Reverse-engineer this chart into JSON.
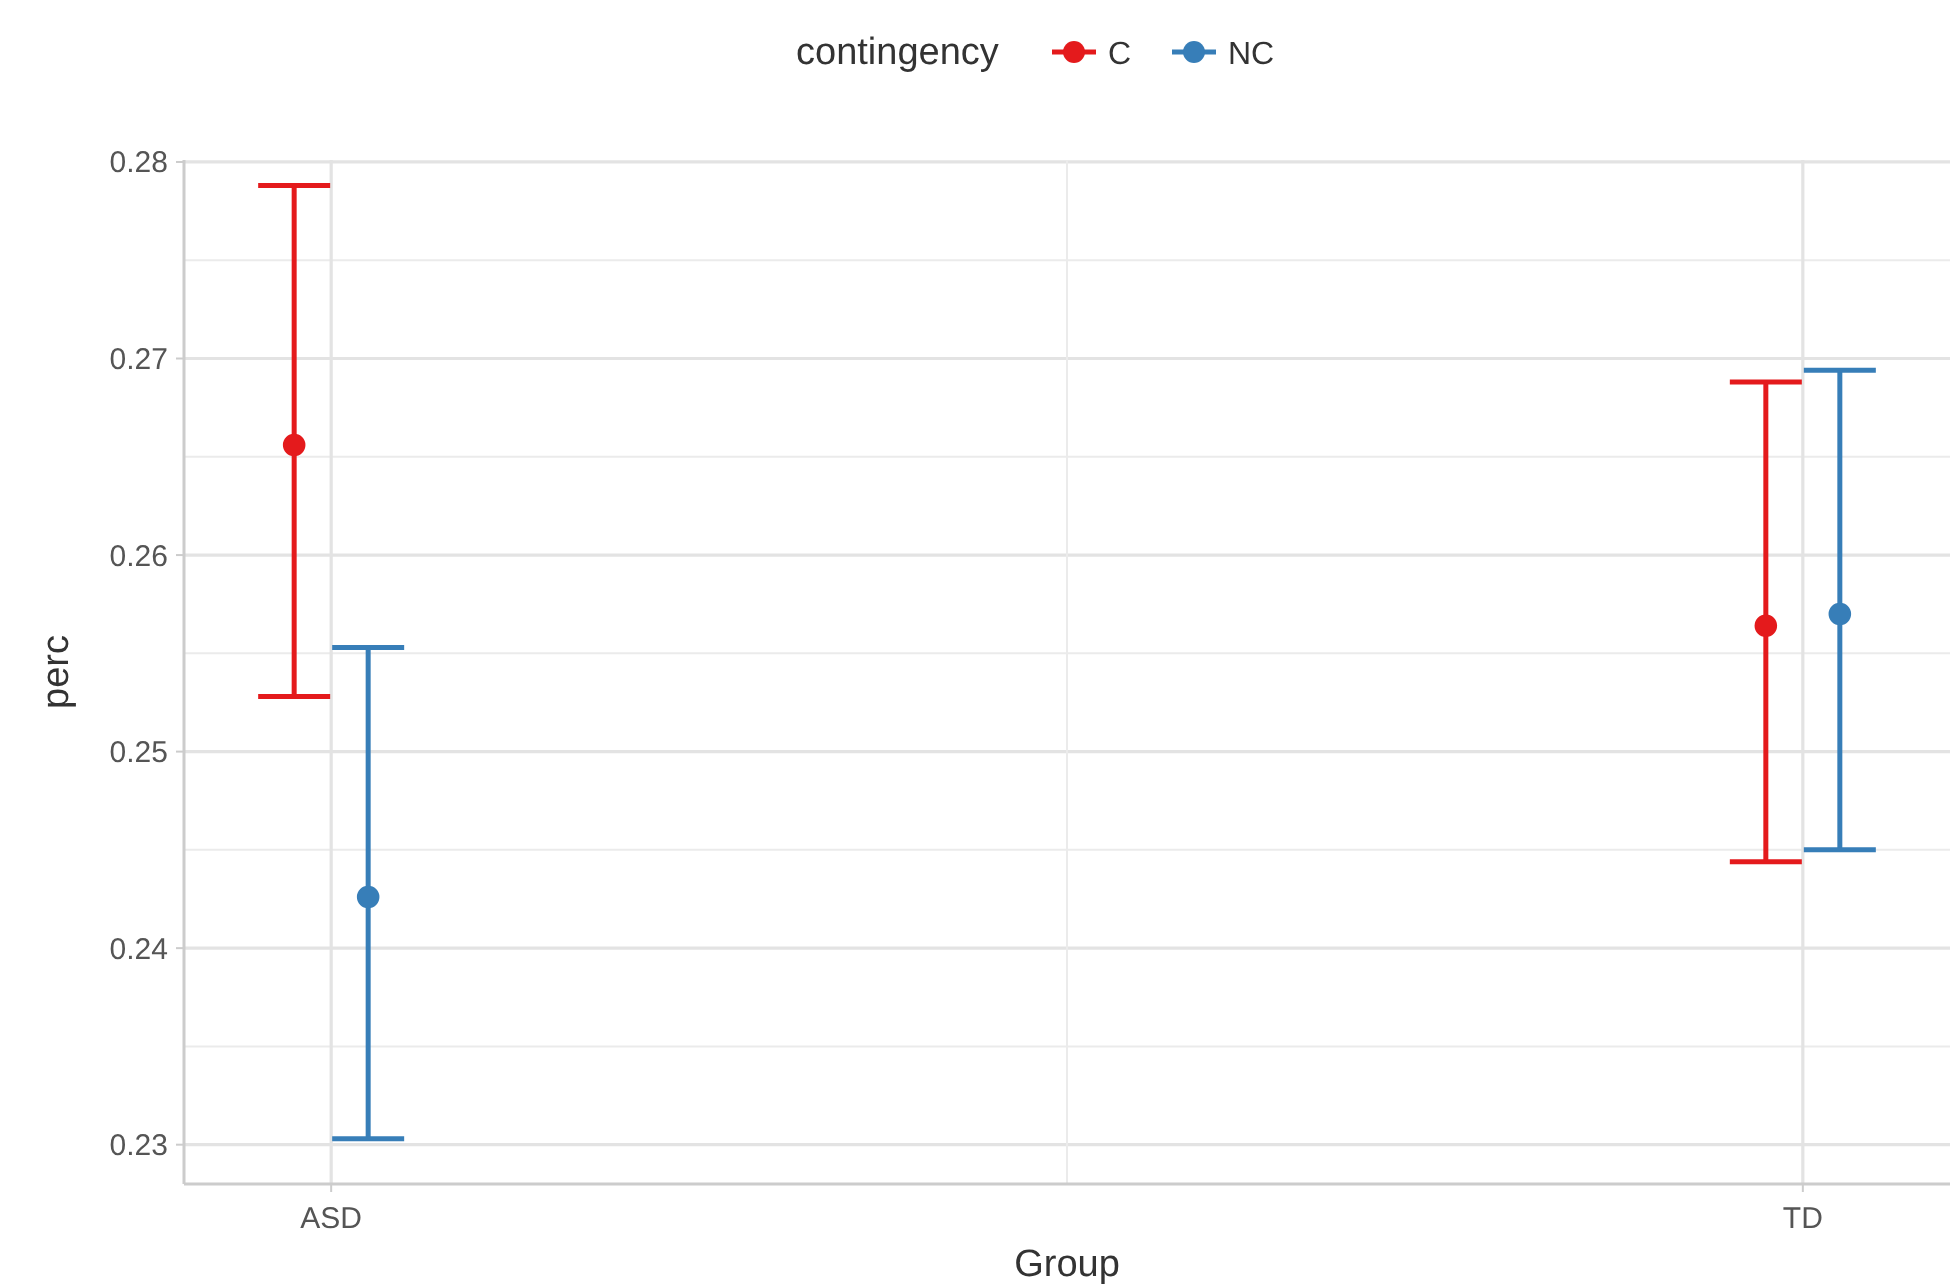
{
  "chart_data": {
    "type": "scatter",
    "xlabel": "Group",
    "ylabel": "perc",
    "legend_title": "contingency",
    "categories": [
      "ASD",
      "TD"
    ],
    "series": [
      {
        "name": "C",
        "color": "#e41a1c",
        "values": [
          0.2656,
          0.2564
        ],
        "errors": [
          [
            0.2528,
            0.2788
          ],
          [
            0.2444,
            0.2688
          ]
        ]
      },
      {
        "name": "NC",
        "color": "#377eb8",
        "values": [
          0.2426,
          0.257
        ],
        "errors": [
          [
            0.2303,
            0.2553
          ],
          [
            0.245,
            0.2694
          ]
        ]
      }
    ],
    "ylim": [
      0.228,
      0.2801
    ],
    "yticks": [
      0.23,
      0.24,
      0.25,
      0.26,
      0.27,
      0.28
    ],
    "grid": true,
    "legend": "top",
    "marker": "circle"
  }
}
